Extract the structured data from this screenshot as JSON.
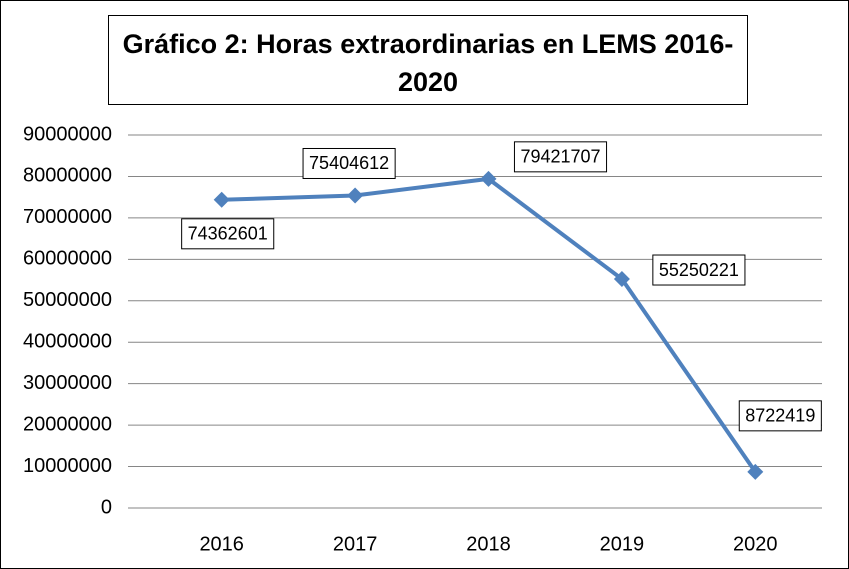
{
  "chart_data": {
    "type": "line",
    "title": [
      "Gráfico 2: Horas extraordinarias en LEMS 2016-",
      "2020"
    ],
    "categories": [
      "2016",
      "2017",
      "2018",
      "2019",
      "2020"
    ],
    "series": [
      {
        "name": "Horas extraordinarias",
        "color": "#4f81bd",
        "values": [
          74362601,
          75404612,
          79421707,
          55250221,
          8722419
        ]
      }
    ],
    "ylim": [
      0,
      90000000
    ],
    "yticks": [
      0,
      10000000,
      20000000,
      30000000,
      40000000,
      50000000,
      60000000,
      70000000,
      80000000,
      90000000
    ],
    "grid": true
  }
}
